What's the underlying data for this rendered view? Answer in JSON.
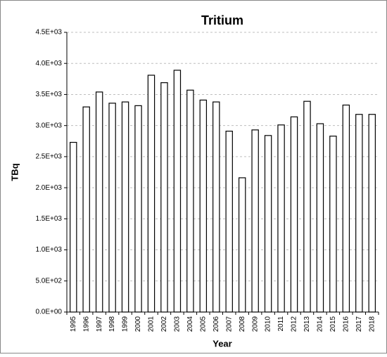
{
  "chart_data": {
    "type": "bar",
    "title": "Tritium",
    "xlabel": "Year",
    "ylabel": "TBq",
    "categories": [
      "1995",
      "1996",
      "1997",
      "1998",
      "1999",
      "2000",
      "2001",
      "2002",
      "2003",
      "2004",
      "2005",
      "2006",
      "2007",
      "2008",
      "2009",
      "2010",
      "2011",
      "2012",
      "2013",
      "2014",
      "2015",
      "2016",
      "2017",
      "2018"
    ],
    "values": [
      2730,
      3300,
      3540,
      3360,
      3380,
      3320,
      3810,
      3690,
      3890,
      3570,
      3410,
      3380,
      2910,
      2160,
      2930,
      2840,
      3010,
      3140,
      3390,
      3030,
      2830,
      3330,
      3180,
      3180
    ],
    "color": "#ffffff",
    "edgecolor": "#000000",
    "ylim": [
      0,
      4500
    ],
    "yticks": [
      {
        "value": 0,
        "label": "0.0E+00"
      },
      {
        "value": 500,
        "label": "5.0E+02"
      },
      {
        "value": 1000,
        "label": "1.0E+03"
      },
      {
        "value": 1500,
        "label": "1.5E+03"
      },
      {
        "value": 2000,
        "label": "2.0E+03"
      },
      {
        "value": 2500,
        "label": "2.5E+03"
      },
      {
        "value": 3000,
        "label": "3.0E+03"
      },
      {
        "value": 3500,
        "label": "3.5E+03"
      },
      {
        "value": 4000,
        "label": "4.0E+03"
      },
      {
        "value": 4500,
        "label": "4.5E+03"
      }
    ],
    "grid": true
  }
}
